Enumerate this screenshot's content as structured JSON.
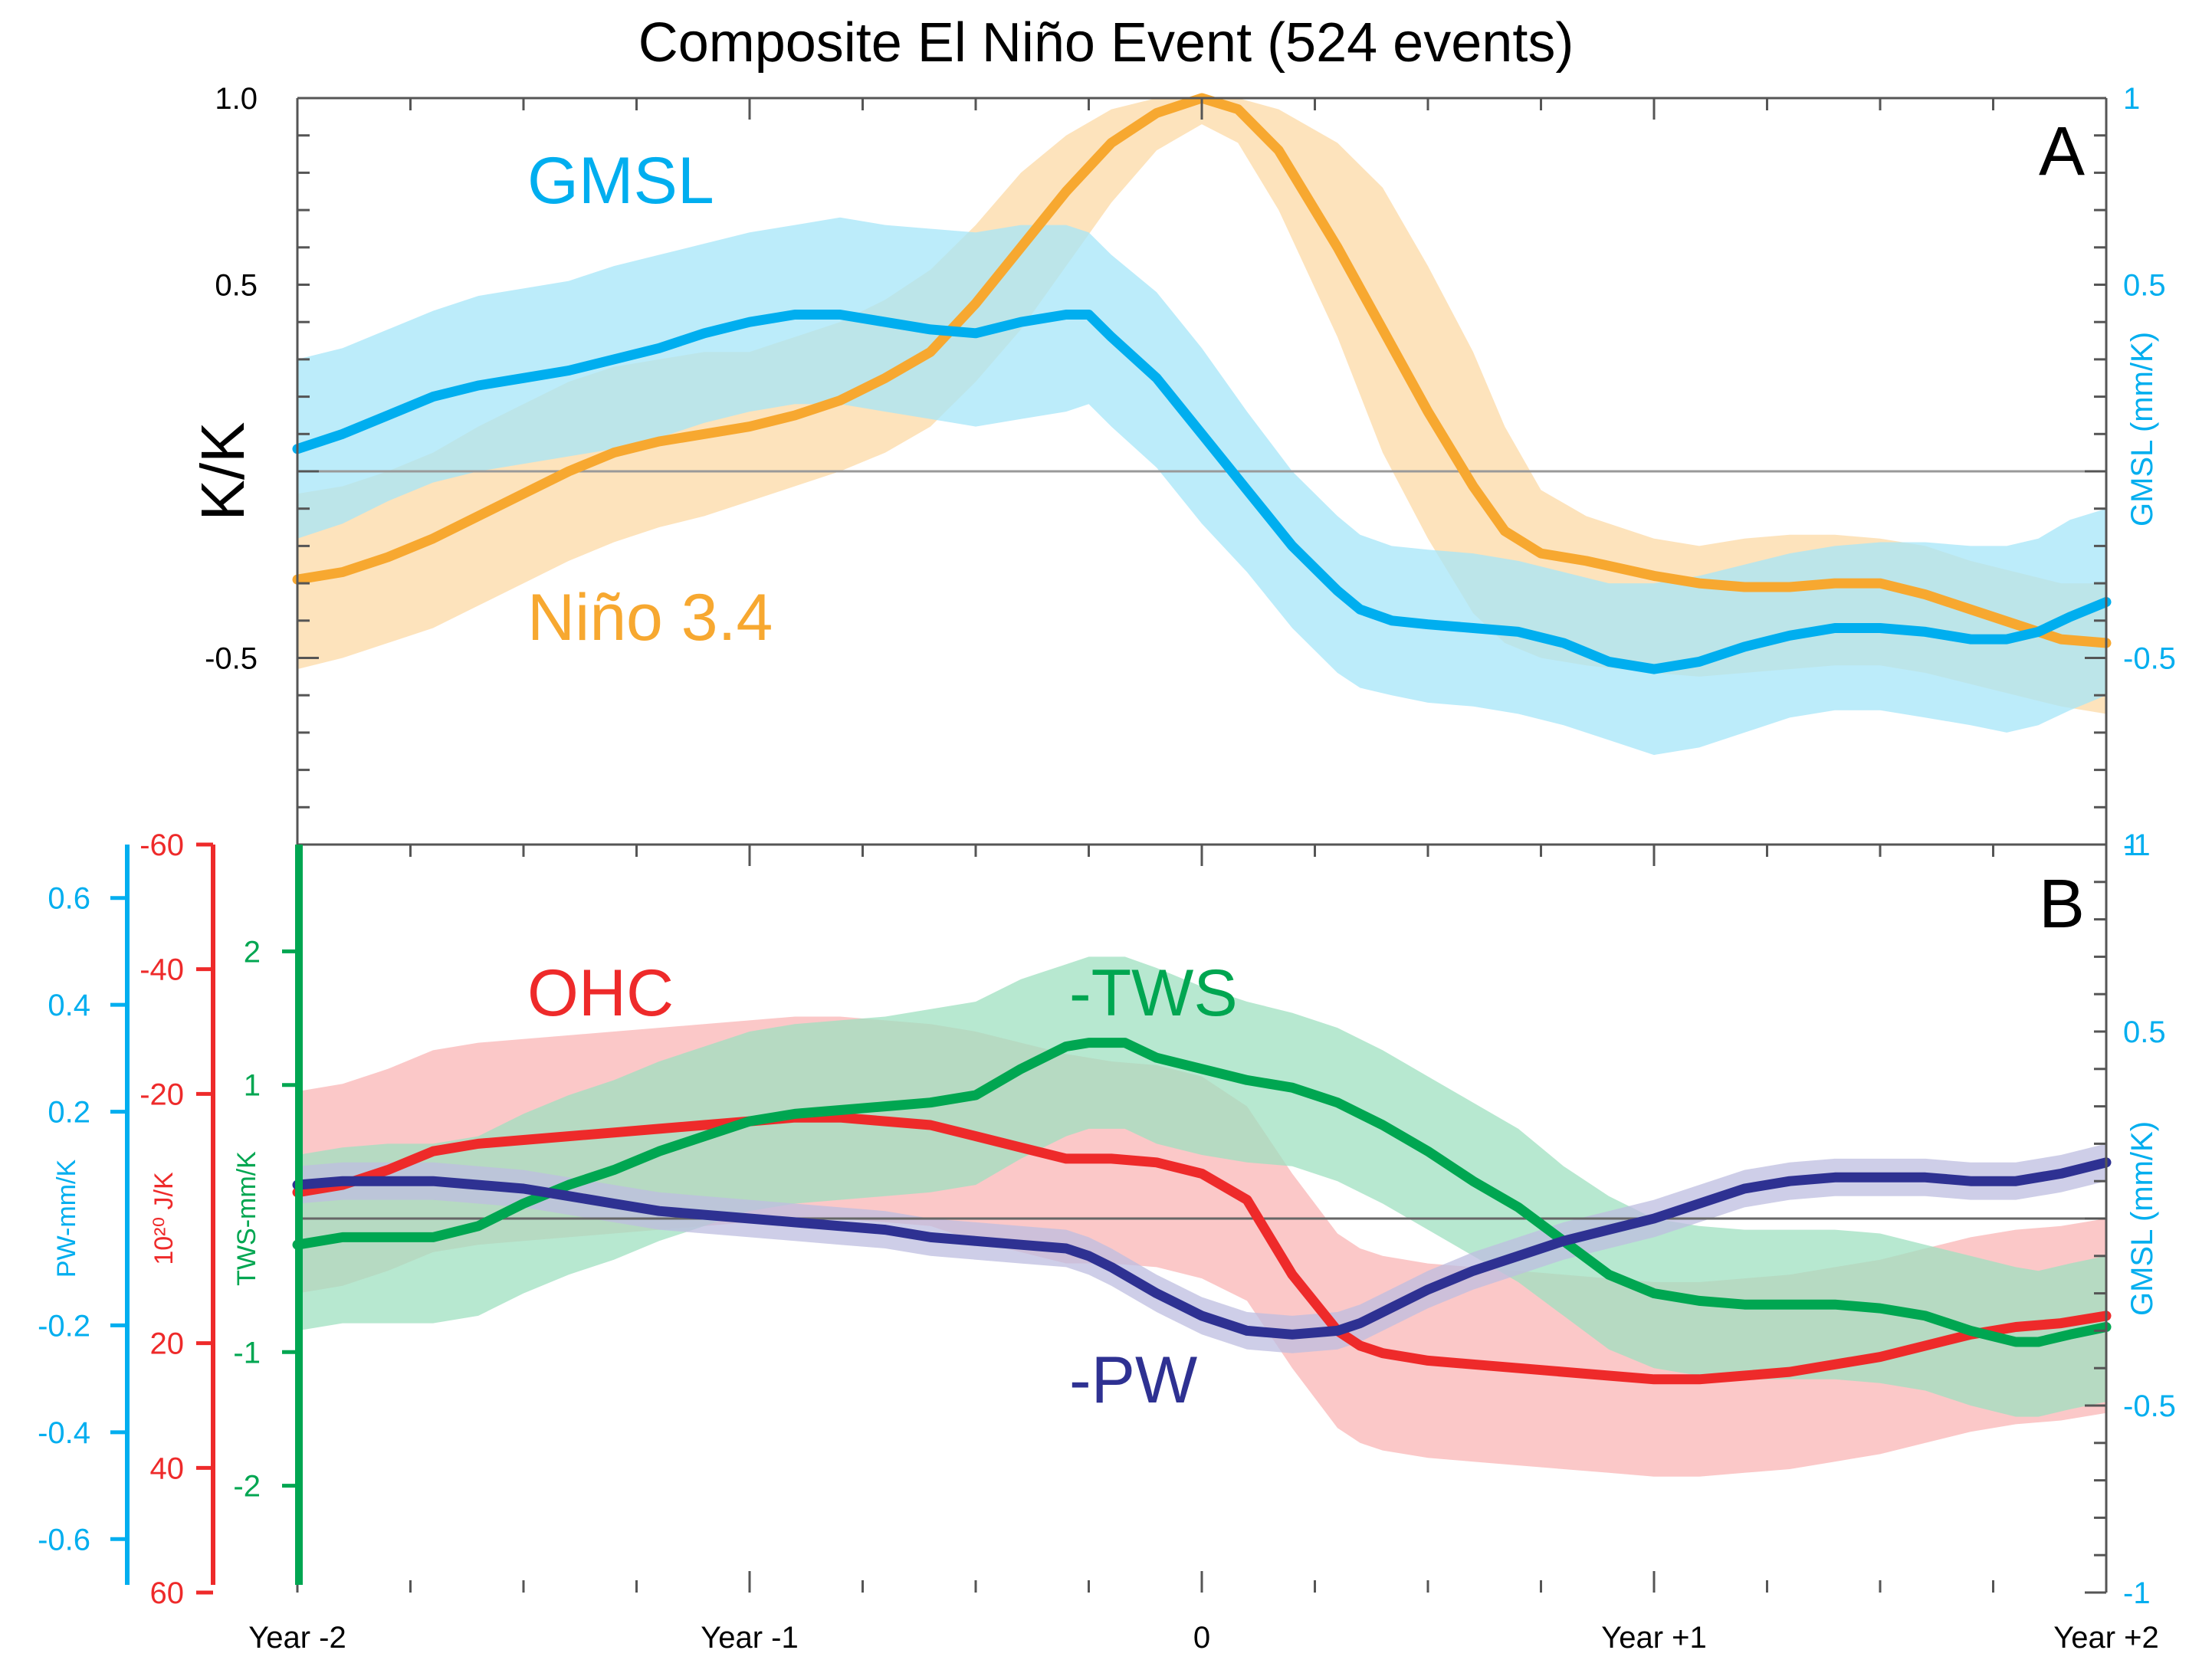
{
  "chart_data": [
    {
      "panel": "A",
      "type": "line",
      "title": "Composite El Niño Event (524 events)",
      "panel_label": "A",
      "ylabel": "K/K",
      "y2label": "GMSL  (mm/K)",
      "ylim": [
        -1.0,
        1.0
      ],
      "y_ticks": [
        "1.0",
        "0.5",
        "-0.5"
      ],
      "y_tick_values": [
        1.0,
        0.5,
        -0.5
      ],
      "y2_ticks": [
        "1",
        "0.5",
        "-0.5",
        "-1"
      ],
      "y2_tick_values": [
        1.0,
        0.5,
        -0.5,
        -1.0
      ],
      "x_ticks": [
        "Year -2",
        "Year -1",
        "0",
        "Year +1",
        "Year +2"
      ],
      "x_tick_values": [
        -2,
        -1,
        0,
        1,
        2
      ],
      "xlim": [
        -2,
        2
      ],
      "zero_line": true,
      "series": [
        {
          "name": "Niño 3.4",
          "label": "Niño 3.4",
          "color": "#F7A830",
          "band_color": "#FCD9A6",
          "x": [
            -2.0,
            -1.9,
            -1.8,
            -1.7,
            -1.6,
            -1.5,
            -1.4,
            -1.3,
            -1.2,
            -1.1,
            -1.0,
            -0.9,
            -0.8,
            -0.7,
            -0.6,
            -0.5,
            -0.4,
            -0.3,
            -0.2,
            -0.1,
            0.0,
            0.08,
            0.17,
            0.3,
            0.4,
            0.5,
            0.6,
            0.67,
            0.75,
            0.85,
            1.0,
            1.1,
            1.2,
            1.3,
            1.4,
            1.5,
            1.6,
            1.7,
            1.8,
            1.9,
            2.0
          ],
          "values": [
            -0.29,
            -0.27,
            -0.23,
            -0.18,
            -0.12,
            -0.06,
            0.0,
            0.05,
            0.08,
            0.1,
            0.12,
            0.15,
            0.19,
            0.25,
            0.32,
            0.45,
            0.6,
            0.75,
            0.88,
            0.96,
            1.0,
            0.97,
            0.86,
            0.6,
            0.38,
            0.16,
            -0.04,
            -0.16,
            -0.22,
            -0.24,
            -0.28,
            -0.3,
            -0.31,
            -0.31,
            -0.3,
            -0.3,
            -0.33,
            -0.37,
            -0.41,
            -0.45,
            -0.46
          ],
          "upper": [
            -0.06,
            -0.04,
            -0.0,
            0.05,
            0.12,
            0.18,
            0.24,
            0.28,
            0.3,
            0.32,
            0.32,
            0.36,
            0.4,
            0.46,
            0.54,
            0.66,
            0.8,
            0.9,
            0.97,
            1.0,
            1.0,
            1.0,
            0.97,
            0.88,
            0.76,
            0.55,
            0.32,
            0.12,
            -0.05,
            -0.12,
            -0.18,
            -0.2,
            -0.18,
            -0.17,
            -0.17,
            -0.18,
            -0.2,
            -0.24,
            -0.27,
            -0.3,
            -0.3
          ],
          "lower": [
            -0.53,
            -0.5,
            -0.46,
            -0.42,
            -0.36,
            -0.3,
            -0.24,
            -0.19,
            -0.15,
            -0.12,
            -0.08,
            -0.04,
            0.0,
            0.05,
            0.12,
            0.24,
            0.38,
            0.55,
            0.72,
            0.86,
            0.93,
            0.88,
            0.7,
            0.36,
            0.05,
            -0.18,
            -0.38,
            -0.46,
            -0.5,
            -0.52,
            -0.54,
            -0.55,
            -0.54,
            -0.53,
            -0.52,
            -0.52,
            -0.54,
            -0.57,
            -0.6,
            -0.63,
            -0.65
          ]
        },
        {
          "name": "GMSL",
          "label": "GMSL",
          "color": "#00AEEF",
          "band_color": "#A6E6F8",
          "x": [
            -2.0,
            -1.9,
            -1.8,
            -1.7,
            -1.6,
            -1.5,
            -1.4,
            -1.3,
            -1.2,
            -1.1,
            -1.0,
            -0.9,
            -0.8,
            -0.7,
            -0.6,
            -0.5,
            -0.4,
            -0.3,
            -0.25,
            -0.2,
            -0.1,
            0.0,
            0.1,
            0.2,
            0.3,
            0.35,
            0.42,
            0.5,
            0.6,
            0.7,
            0.8,
            0.9,
            1.0,
            1.1,
            1.2,
            1.3,
            1.4,
            1.5,
            1.6,
            1.7,
            1.78,
            1.85,
            1.92,
            2.0
          ],
          "values": [
            0.06,
            0.1,
            0.15,
            0.2,
            0.23,
            0.25,
            0.27,
            0.3,
            0.33,
            0.37,
            0.4,
            0.42,
            0.42,
            0.4,
            0.38,
            0.37,
            0.4,
            0.42,
            0.42,
            0.36,
            0.25,
            0.1,
            -0.05,
            -0.2,
            -0.32,
            -0.37,
            -0.4,
            -0.41,
            -0.42,
            -0.43,
            -0.46,
            -0.51,
            -0.53,
            -0.51,
            -0.47,
            -0.44,
            -0.42,
            -0.42,
            -0.43,
            -0.45,
            -0.45,
            -0.43,
            -0.39,
            -0.35
          ],
          "upper": [
            0.3,
            0.33,
            0.38,
            0.43,
            0.47,
            0.49,
            0.51,
            0.55,
            0.58,
            0.61,
            0.64,
            0.66,
            0.68,
            0.66,
            0.65,
            0.64,
            0.66,
            0.66,
            0.64,
            0.58,
            0.48,
            0.33,
            0.16,
            0.0,
            -0.12,
            -0.17,
            -0.2,
            -0.21,
            -0.22,
            -0.24,
            -0.27,
            -0.3,
            -0.3,
            -0.28,
            -0.25,
            -0.22,
            -0.2,
            -0.19,
            -0.19,
            -0.2,
            -0.2,
            -0.18,
            -0.13,
            -0.1
          ],
          "lower": [
            -0.18,
            -0.14,
            -0.08,
            -0.03,
            0.0,
            0.02,
            0.04,
            0.06,
            0.09,
            0.13,
            0.16,
            0.18,
            0.18,
            0.16,
            0.14,
            0.12,
            0.14,
            0.16,
            0.18,
            0.12,
            0.01,
            -0.14,
            -0.27,
            -0.42,
            -0.54,
            -0.58,
            -0.6,
            -0.62,
            -0.63,
            -0.65,
            -0.68,
            -0.72,
            -0.76,
            -0.74,
            -0.7,
            -0.66,
            -0.64,
            -0.64,
            -0.66,
            -0.68,
            -0.7,
            -0.68,
            -0.64,
            -0.6
          ]
        }
      ]
    },
    {
      "panel": "B",
      "type": "line",
      "panel_label": "B",
      "y2label": "GMSL  (mm/K)",
      "ylim": [
        -1.0,
        1.0
      ],
      "y2_ticks": [
        "1",
        "0.5",
        "-0.5",
        "-1"
      ],
      "y2_tick_values": [
        1.0,
        0.5,
        -0.5,
        -1.0
      ],
      "x_ticks": [
        "Year -2",
        "Year -1",
        "0",
        "Year +1",
        "Year +2"
      ],
      "x_tick_values": [
        -2,
        -1,
        0,
        1,
        2
      ],
      "xlim": [
        -2,
        2
      ],
      "zero_line": true,
      "left_axes": [
        {
          "name": "PW",
          "title": "PW-mm/K",
          "color": "#00AEEF",
          "range": [
            0.7,
            -0.7
          ],
          "ticks": [
            "-0.6",
            "-0.4",
            "-0.2",
            "0.2",
            "0.4",
            "0.6"
          ],
          "tick_values": [
            -0.6,
            -0.4,
            -0.2,
            0.2,
            0.4,
            0.6
          ]
        },
        {
          "name": "OHC",
          "title": "10²⁰ J/K",
          "color": "#EE2A2A",
          "range": [
            -60,
            60
          ],
          "ticks": [
            "60",
            "40",
            "20",
            "-20",
            "-40",
            "-60"
          ],
          "tick_values": [
            60,
            40,
            20,
            -20,
            -40,
            -60
          ]
        },
        {
          "name": "TWS",
          "title": "TWS-mm/K",
          "color": "#00A651",
          "range": [
            2.8,
            -2.8
          ],
          "ticks": [
            "-2",
            "-1",
            "1",
            "2"
          ],
          "tick_values": [
            -2,
            -1,
            1,
            2
          ]
        }
      ],
      "series": [
        {
          "name": "OHC",
          "label": "OHC",
          "color": "#EE2A2A",
          "band_color": "#F9B6B6",
          "x": [
            -2.0,
            -1.9,
            -1.8,
            -1.7,
            -1.6,
            -1.5,
            -1.4,
            -1.3,
            -1.2,
            -1.1,
            -1.0,
            -0.9,
            -0.8,
            -0.7,
            -0.6,
            -0.5,
            -0.4,
            -0.3,
            -0.2,
            -0.1,
            0.0,
            0.1,
            0.2,
            0.3,
            0.35,
            0.4,
            0.5,
            0.6,
            0.7,
            0.8,
            0.9,
            1.0,
            1.1,
            1.2,
            1.3,
            1.4,
            1.5,
            1.6,
            1.7,
            1.8,
            1.9,
            2.0
          ],
          "values": [
            0.07,
            0.09,
            0.13,
            0.18,
            0.2,
            0.21,
            0.22,
            0.23,
            0.24,
            0.25,
            0.26,
            0.27,
            0.27,
            0.26,
            0.25,
            0.22,
            0.19,
            0.16,
            0.16,
            0.15,
            0.12,
            0.05,
            -0.15,
            -0.3,
            -0.34,
            -0.36,
            -0.38,
            -0.39,
            -0.4,
            -0.41,
            -0.42,
            -0.43,
            -0.43,
            -0.42,
            -0.41,
            -0.39,
            -0.37,
            -0.34,
            -0.31,
            -0.29,
            -0.28,
            -0.26
          ],
          "upper": [
            0.34,
            0.36,
            0.4,
            0.45,
            0.47,
            0.48,
            0.49,
            0.5,
            0.51,
            0.52,
            0.53,
            0.54,
            0.54,
            0.53,
            0.52,
            0.5,
            0.47,
            0.44,
            0.42,
            0.41,
            0.38,
            0.3,
            0.12,
            -0.04,
            -0.08,
            -0.1,
            -0.12,
            -0.13,
            -0.14,
            -0.15,
            -0.16,
            -0.17,
            -0.17,
            -0.16,
            -0.15,
            -0.13,
            -0.11,
            -0.08,
            -0.05,
            -0.03,
            -0.02,
            0.0
          ],
          "lower": [
            -0.2,
            -0.18,
            -0.14,
            -0.09,
            -0.07,
            -0.06,
            -0.05,
            -0.04,
            -0.03,
            -0.02,
            -0.01,
            0.0,
            0.0,
            -0.01,
            -0.02,
            -0.06,
            -0.09,
            -0.12,
            -0.12,
            -0.13,
            -0.16,
            -0.22,
            -0.4,
            -0.56,
            -0.6,
            -0.62,
            -0.64,
            -0.65,
            -0.66,
            -0.67,
            -0.68,
            -0.69,
            -0.69,
            -0.68,
            -0.67,
            -0.65,
            -0.63,
            -0.6,
            -0.57,
            -0.55,
            -0.54,
            -0.52
          ]
        },
        {
          "name": "-TWS",
          "label": "-TWS",
          "color": "#00A651",
          "band_color": "#9FE0C0",
          "x": [
            -2.0,
            -1.9,
            -1.8,
            -1.7,
            -1.6,
            -1.5,
            -1.4,
            -1.3,
            -1.2,
            -1.1,
            -1.0,
            -0.9,
            -0.8,
            -0.7,
            -0.6,
            -0.5,
            -0.4,
            -0.3,
            -0.25,
            -0.17,
            -0.1,
            0.0,
            0.1,
            0.2,
            0.3,
            0.4,
            0.5,
            0.6,
            0.7,
            0.8,
            0.9,
            1.0,
            1.1,
            1.2,
            1.3,
            1.4,
            1.5,
            1.6,
            1.7,
            1.8,
            1.85,
            1.92,
            2.0
          ],
          "values": [
            -0.07,
            -0.05,
            -0.05,
            -0.05,
            -0.02,
            0.04,
            0.09,
            0.13,
            0.18,
            0.22,
            0.26,
            0.28,
            0.29,
            0.3,
            0.31,
            0.33,
            0.4,
            0.46,
            0.47,
            0.47,
            0.43,
            0.4,
            0.37,
            0.35,
            0.31,
            0.25,
            0.18,
            0.1,
            0.03,
            -0.06,
            -0.15,
            -0.2,
            -0.22,
            -0.23,
            -0.23,
            -0.23,
            -0.24,
            -0.26,
            -0.3,
            -0.33,
            -0.33,
            -0.31,
            -0.29
          ],
          "upper": [
            0.17,
            0.19,
            0.2,
            0.2,
            0.22,
            0.28,
            0.33,
            0.37,
            0.42,
            0.46,
            0.5,
            0.52,
            0.53,
            0.54,
            0.56,
            0.58,
            0.64,
            0.68,
            0.7,
            0.7,
            0.67,
            0.62,
            0.58,
            0.55,
            0.51,
            0.45,
            0.38,
            0.31,
            0.24,
            0.14,
            0.06,
            0.0,
            -0.02,
            -0.03,
            -0.03,
            -0.03,
            -0.04,
            -0.07,
            -0.1,
            -0.13,
            -0.14,
            -0.12,
            -0.1
          ],
          "lower": [
            -0.3,
            -0.28,
            -0.28,
            -0.28,
            -0.26,
            -0.2,
            -0.15,
            -0.11,
            -0.06,
            -0.02,
            0.02,
            0.04,
            0.05,
            0.06,
            0.07,
            0.09,
            0.16,
            0.22,
            0.24,
            0.24,
            0.2,
            0.17,
            0.15,
            0.14,
            0.1,
            0.04,
            -0.03,
            -0.1,
            -0.17,
            -0.26,
            -0.35,
            -0.4,
            -0.42,
            -0.43,
            -0.43,
            -0.43,
            -0.44,
            -0.46,
            -0.5,
            -0.53,
            -0.53,
            -0.51,
            -0.49
          ]
        },
        {
          "name": "-PW",
          "label": "-PW",
          "color": "#2E3192",
          "band_color": "#BDBDE0",
          "x": [
            -2.0,
            -1.9,
            -1.8,
            -1.7,
            -1.6,
            -1.5,
            -1.4,
            -1.3,
            -1.2,
            -1.1,
            -1.0,
            -0.9,
            -0.8,
            -0.7,
            -0.6,
            -0.5,
            -0.4,
            -0.3,
            -0.25,
            -0.2,
            -0.1,
            0.0,
            0.1,
            0.2,
            0.3,
            0.35,
            0.4,
            0.5,
            0.6,
            0.7,
            0.8,
            0.9,
            1.0,
            1.1,
            1.2,
            1.3,
            1.4,
            1.5,
            1.6,
            1.7,
            1.8,
            1.9,
            2.0
          ],
          "values": [
            0.09,
            0.1,
            0.1,
            0.1,
            0.09,
            0.08,
            0.06,
            0.04,
            0.02,
            0.01,
            0.0,
            -0.01,
            -0.02,
            -0.03,
            -0.05,
            -0.06,
            -0.07,
            -0.08,
            -0.1,
            -0.13,
            -0.2,
            -0.26,
            -0.3,
            -0.31,
            -0.3,
            -0.28,
            -0.25,
            -0.19,
            -0.14,
            -0.1,
            -0.06,
            -0.03,
            0.0,
            0.04,
            0.08,
            0.1,
            0.11,
            0.11,
            0.11,
            0.1,
            0.1,
            0.12,
            0.15
          ],
          "upper": [
            0.14,
            0.15,
            0.15,
            0.15,
            0.14,
            0.13,
            0.11,
            0.09,
            0.07,
            0.06,
            0.05,
            0.04,
            0.03,
            0.02,
            0.0,
            -0.01,
            -0.02,
            -0.03,
            -0.05,
            -0.08,
            -0.15,
            -0.21,
            -0.25,
            -0.26,
            -0.25,
            -0.23,
            -0.2,
            -0.14,
            -0.09,
            -0.05,
            -0.01,
            0.02,
            0.05,
            0.09,
            0.13,
            0.15,
            0.16,
            0.16,
            0.16,
            0.15,
            0.15,
            0.17,
            0.2
          ],
          "lower": [
            0.04,
            0.05,
            0.05,
            0.05,
            0.04,
            0.03,
            0.01,
            -0.01,
            -0.03,
            -0.04,
            -0.05,
            -0.06,
            -0.07,
            -0.08,
            -0.1,
            -0.11,
            -0.12,
            -0.13,
            -0.15,
            -0.18,
            -0.25,
            -0.31,
            -0.35,
            -0.36,
            -0.35,
            -0.33,
            -0.3,
            -0.24,
            -0.19,
            -0.15,
            -0.11,
            -0.08,
            -0.05,
            -0.01,
            0.03,
            0.05,
            0.06,
            0.06,
            0.06,
            0.05,
            0.05,
            0.07,
            0.1
          ]
        }
      ]
    }
  ]
}
